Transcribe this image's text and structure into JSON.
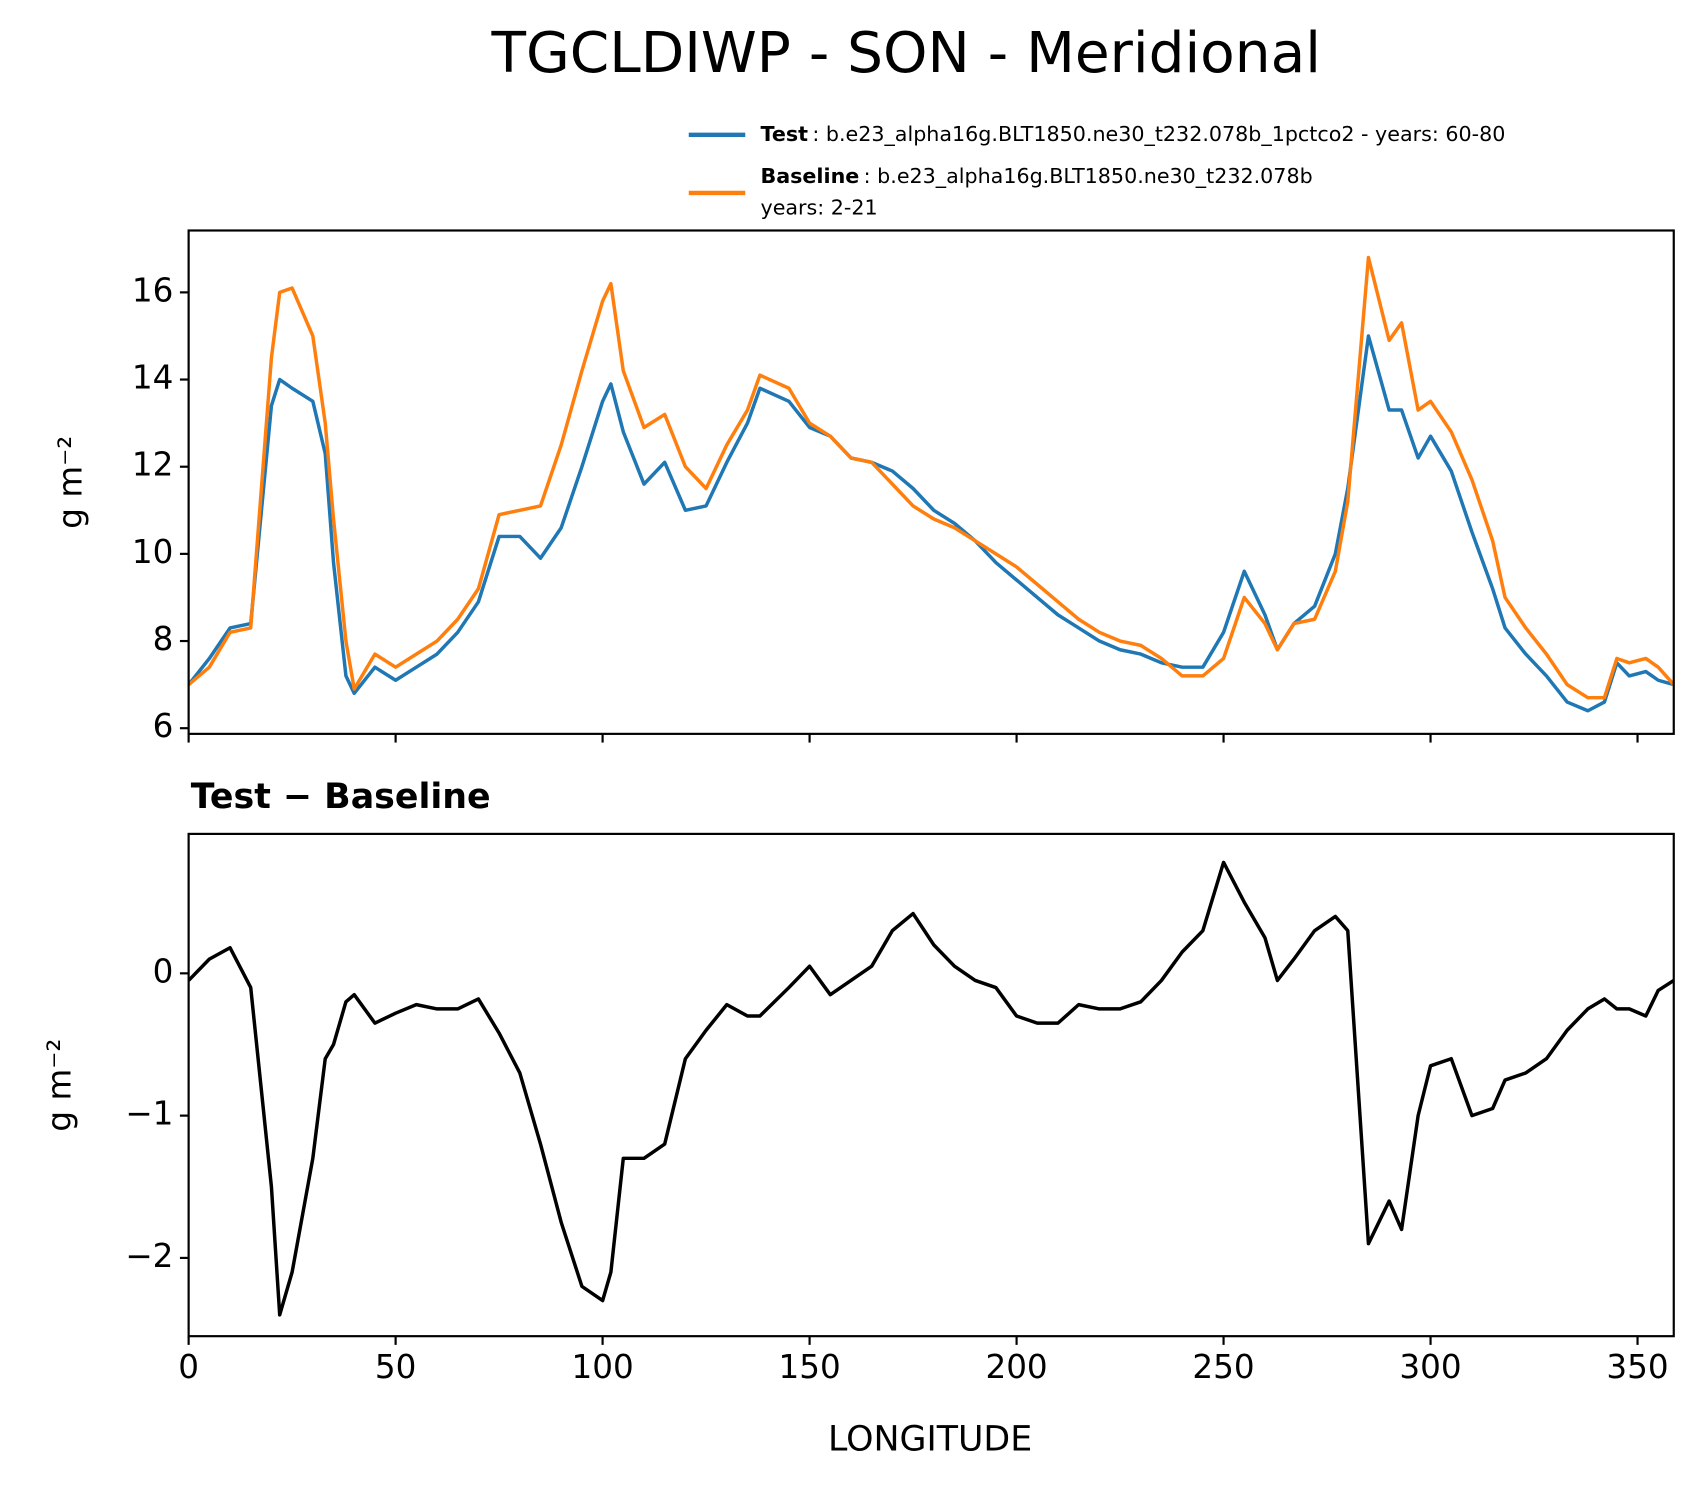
{
  "chart_data": [
    {
      "type": "line",
      "title": "TGCLDIWP - SON - Meridional",
      "ylabel": "g m⁻²",
      "x": [
        0,
        5,
        10,
        15,
        20,
        22,
        25,
        30,
        33,
        35,
        38,
        40,
        45,
        50,
        55,
        60,
        65,
        70,
        75,
        80,
        85,
        90,
        95,
        100,
        102,
        105,
        110,
        115,
        120,
        125,
        130,
        135,
        138,
        145,
        150,
        155,
        160,
        165,
        170,
        175,
        180,
        185,
        190,
        195,
        200,
        205,
        210,
        215,
        220,
        225,
        230,
        235,
        240,
        245,
        250,
        255,
        260,
        263,
        267,
        272,
        277,
        280,
        285,
        290,
        293,
        297,
        300,
        305,
        310,
        315,
        318,
        323,
        328,
        333,
        338,
        342,
        345,
        348,
        352,
        355,
        358.75
      ],
      "series": [
        {
          "name": "Test",
          "description": [
            ": b.e23_alpha16g.BLT1850.ne30_t232.078b_1pctco2 - years: 60-80"
          ],
          "color": "#1f77b4",
          "values": [
            7.0,
            7.6,
            8.3,
            8.4,
            13.4,
            14.0,
            13.8,
            13.5,
            12.3,
            9.8,
            7.2,
            6.8,
            7.4,
            7.1,
            7.4,
            7.7,
            8.2,
            8.9,
            10.4,
            10.4,
            9.9,
            10.6,
            12.0,
            13.5,
            13.9,
            12.8,
            11.6,
            12.1,
            11.0,
            11.1,
            12.1,
            13.0,
            13.8,
            13.5,
            12.9,
            12.7,
            12.2,
            12.1,
            11.9,
            11.5,
            11.0,
            10.7,
            10.3,
            9.8,
            9.4,
            9.0,
            8.6,
            8.3,
            8.0,
            7.8,
            7.7,
            7.5,
            7.4,
            7.4,
            8.2,
            9.6,
            8.6,
            7.8,
            8.4,
            8.8,
            10.0,
            11.5,
            15.0,
            13.3,
            13.3,
            12.2,
            12.7,
            11.9,
            10.5,
            9.2,
            8.3,
            7.7,
            7.2,
            6.6,
            6.4,
            6.6,
            7.5,
            7.2,
            7.3,
            7.1,
            7.0
          ]
        },
        {
          "name": "Baseline",
          "description": [
            ": b.e23_alpha16g.BLT1850.ne30_t232.078b",
            "years: 2-21"
          ],
          "color": "#ff7f0e",
          "values": [
            7.0,
            7.4,
            8.2,
            8.3,
            14.5,
            16.0,
            16.1,
            15.0,
            13.0,
            10.8,
            8.0,
            6.9,
            7.7,
            7.4,
            7.7,
            8.0,
            8.5,
            9.2,
            10.9,
            11.0,
            11.1,
            12.5,
            14.2,
            15.8,
            16.2,
            14.2,
            12.9,
            13.2,
            12.0,
            11.5,
            12.5,
            13.3,
            14.1,
            13.8,
            13.0,
            12.7,
            12.2,
            12.1,
            11.6,
            11.1,
            10.8,
            10.6,
            10.3,
            10.0,
            9.7,
            9.3,
            8.9,
            8.5,
            8.2,
            8.0,
            7.9,
            7.6,
            7.2,
            7.2,
            7.6,
            9.0,
            8.4,
            7.8,
            8.4,
            8.5,
            9.6,
            11.2,
            16.8,
            14.9,
            15.3,
            13.3,
            13.5,
            12.8,
            11.7,
            10.3,
            9.0,
            8.3,
            7.7,
            7.0,
            6.7,
            6.7,
            7.6,
            7.5,
            7.6,
            7.4,
            7.0
          ]
        }
      ],
      "xlim": [
        0,
        358.75
      ],
      "xticks": [
        0,
        50,
        100,
        150,
        200,
        250,
        300,
        350
      ],
      "ylim": [
        5.87,
        17.42
      ],
      "yticks": [
        6,
        8,
        10,
        12,
        14,
        16
      ]
    },
    {
      "type": "line",
      "title": "Test − Baseline",
      "ylabel": "g m⁻²",
      "xlabel": "LONGITUDE",
      "x": [
        0,
        5,
        10,
        15,
        20,
        22,
        25,
        30,
        33,
        35,
        38,
        40,
        45,
        50,
        55,
        60,
        65,
        70,
        75,
        80,
        85,
        90,
        95,
        100,
        102,
        105,
        110,
        115,
        120,
        125,
        130,
        135,
        138,
        145,
        150,
        155,
        160,
        165,
        170,
        175,
        180,
        185,
        190,
        195,
        200,
        205,
        210,
        215,
        220,
        225,
        230,
        235,
        240,
        245,
        250,
        255,
        260,
        263,
        267,
        272,
        277,
        280,
        285,
        290,
        293,
        297,
        300,
        305,
        310,
        315,
        318,
        323,
        328,
        333,
        338,
        342,
        345,
        348,
        352,
        355,
        358.75
      ],
      "series": [
        {
          "color": "#000000",
          "values": [
            -0.05,
            0.1,
            0.18,
            -0.1,
            -1.5,
            -2.4,
            -2.1,
            -1.3,
            -0.6,
            -0.5,
            -0.2,
            -0.15,
            -0.35,
            -0.28,
            -0.22,
            -0.25,
            -0.25,
            -0.18,
            -0.42,
            -0.7,
            -1.2,
            -1.75,
            -2.2,
            -2.3,
            -2.1,
            -1.3,
            -1.3,
            -1.2,
            -0.6,
            -0.4,
            -0.22,
            -0.3,
            -0.3,
            -0.1,
            0.05,
            -0.15,
            -0.05,
            0.05,
            0.3,
            0.42,
            0.2,
            0.05,
            -0.05,
            -0.1,
            -0.3,
            -0.35,
            -0.35,
            -0.22,
            -0.25,
            -0.25,
            -0.2,
            -0.05,
            0.15,
            0.3,
            0.78,
            0.5,
            0.25,
            -0.05,
            0.1,
            0.3,
            0.4,
            0.3,
            -1.9,
            -1.6,
            -1.8,
            -1.0,
            -0.65,
            -0.6,
            -1.0,
            -0.95,
            -0.75,
            -0.7,
            -0.6,
            -0.4,
            -0.25,
            -0.18,
            -0.25,
            -0.25,
            -0.3,
            -0.12,
            -0.05
          ]
        }
      ],
      "xlim": [
        0,
        358.75
      ],
      "xticks": [
        0,
        50,
        100,
        150,
        200,
        250,
        300,
        350
      ],
      "ylim": [
        -2.55,
        0.98
      ],
      "yticks": [
        {
          "value": -2,
          "label": "−2"
        },
        {
          "value": -1,
          "label": "−1"
        },
        0
      ]
    }
  ]
}
